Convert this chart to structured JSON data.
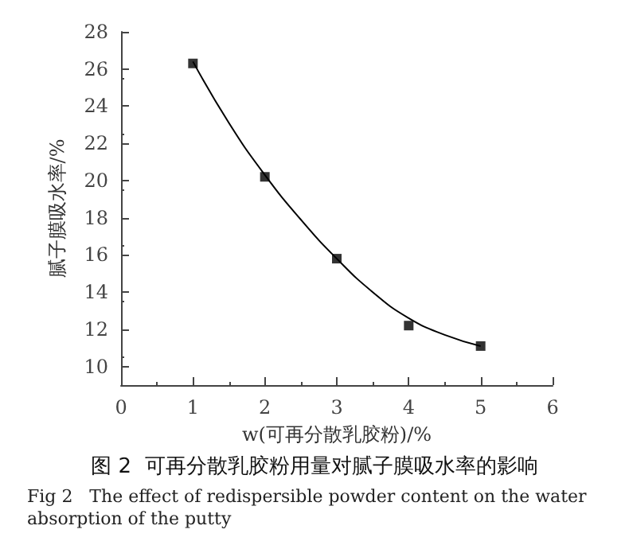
{
  "chart_data": {
    "type": "scatter",
    "title": "图 2  可再分散乳胶粉用量对腻子膜吸水率的影响",
    "subtitle": "Fig 2   The effect of redispersible powder content on the water absorption of the putty",
    "xlabel": "w(可再分散乳胶粉)/%",
    "ylabel": "腻子膜吸水率/%",
    "x": [
      1,
      2,
      3,
      4,
      5
    ],
    "series": [
      {
        "color": "#000000",
        "marker": "square",
        "values": [
          26.3,
          20.2,
          15.8,
          12.2,
          11.1
        ]
      },
      {
        "type": "line",
        "color": "#000000",
        "marker": "none",
        "line_style": "solid",
        "x": [
          1,
          1.5,
          2,
          2.5,
          3,
          3.5,
          4,
          4.5,
          5
        ],
        "values": [
          26.4,
          23.1,
          20.3,
          17.9,
          15.8,
          14.0,
          12.6,
          11.7,
          11.1
        ]
      }
    ],
    "xlim": [
      0,
      6
    ],
    "xticks": [
      0,
      1,
      2,
      3,
      4,
      5,
      6
    ],
    "ylim": [
      9,
      28
    ],
    "yticks": [
      10,
      12,
      14,
      16,
      18,
      20,
      22,
      24,
      26,
      28
    ],
    "grid": false
  }
}
